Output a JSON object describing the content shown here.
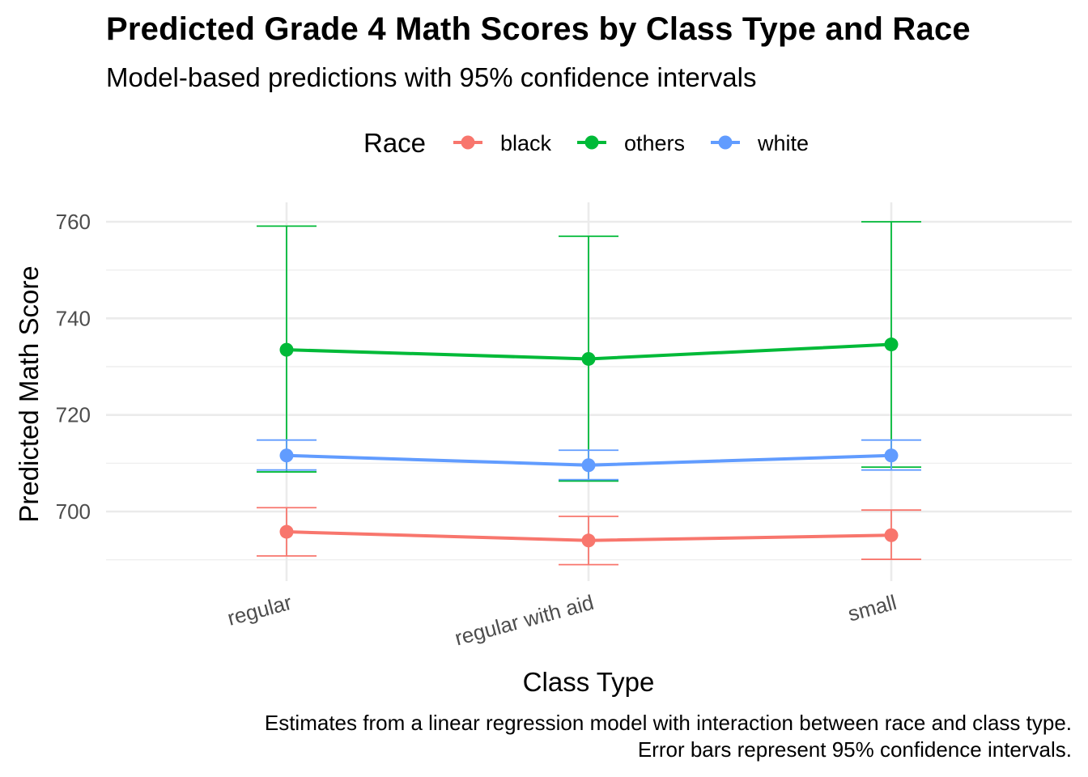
{
  "chart_data": {
    "type": "line",
    "title": "Predicted Grade 4 Math Scores by Class Type and Race",
    "subtitle": "Model-based predictions with 95% confidence intervals",
    "xlabel": "Class Type",
    "ylabel": "Predicted Math Score",
    "caption": [
      "Estimates from a linear regression model with interaction between race and class type.",
      "Error bars represent 95% confidence intervals."
    ],
    "categories": [
      "regular",
      "regular with aid",
      "small"
    ],
    "yticks": [
      700,
      720,
      740,
      760
    ],
    "ylim": [
      687,
      764
    ],
    "grid": true,
    "legend": {
      "title": "Race",
      "position": "top"
    },
    "series": [
      {
        "name": "black",
        "color": "#F8766D",
        "values": [
          695.8,
          694.0,
          695.1
        ],
        "lower": [
          690.8,
          689.0,
          690.1
        ],
        "upper": [
          700.8,
          699.0,
          700.3
        ]
      },
      {
        "name": "others",
        "color": "#00BA38",
        "values": [
          733.5,
          731.6,
          734.6
        ],
        "lower": [
          708.2,
          706.3,
          709.2
        ],
        "upper": [
          759.1,
          757.0,
          760.0
        ]
      },
      {
        "name": "white",
        "color": "#619CFF",
        "values": [
          711.6,
          709.6,
          711.6
        ],
        "lower": [
          708.6,
          706.6,
          708.6
        ],
        "upper": [
          714.8,
          712.7,
          714.8
        ]
      }
    ]
  }
}
